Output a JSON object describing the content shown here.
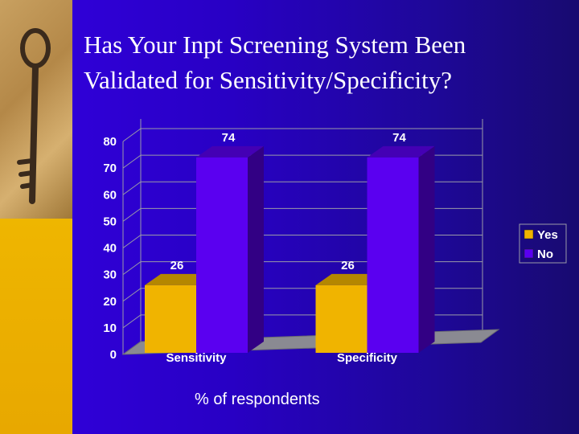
{
  "slide": {
    "title_line1": "Has Your Inpt Screening System Been",
    "title_line2": "Validated for Sensitivity/Specificity?",
    "footer": "% of respondents",
    "key_photo_icon": "key-icon"
  },
  "colors": {
    "background": "#2a00b0",
    "sidebar": "#f5c400",
    "yes": "#f0b400",
    "no": "#5a00f0",
    "text": "#ffffff"
  },
  "chart_data": {
    "type": "bar",
    "categories": [
      "Sensitivity",
      "Specificity"
    ],
    "series": [
      {
        "name": "Yes",
        "values": [
          26,
          26
        ]
      },
      {
        "name": "No",
        "values": [
          74,
          74
        ]
      }
    ],
    "ylim": [
      0,
      80
    ],
    "yticks": [
      "0",
      "10",
      "20",
      "30",
      "40",
      "50",
      "60",
      "70",
      "80"
    ],
    "data_labels": [
      [
        "26",
        "26"
      ],
      [
        "74",
        "74"
      ]
    ],
    "grid": true,
    "legend": "right",
    "three_d": true,
    "xlabel": "",
    "ylabel": ""
  }
}
